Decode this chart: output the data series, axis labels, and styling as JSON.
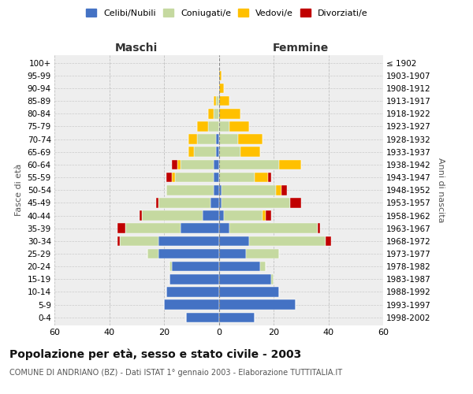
{
  "age_groups": [
    "0-4",
    "5-9",
    "10-14",
    "15-19",
    "20-24",
    "25-29",
    "30-34",
    "35-39",
    "40-44",
    "45-49",
    "50-54",
    "55-59",
    "60-64",
    "65-69",
    "70-74",
    "75-79",
    "80-84",
    "85-89",
    "90-94",
    "95-99",
    "100+"
  ],
  "birth_years": [
    "1998-2002",
    "1993-1997",
    "1988-1992",
    "1983-1987",
    "1978-1982",
    "1973-1977",
    "1968-1972",
    "1963-1967",
    "1958-1962",
    "1953-1957",
    "1948-1952",
    "1943-1947",
    "1938-1942",
    "1933-1937",
    "1928-1932",
    "1923-1927",
    "1918-1922",
    "1913-1917",
    "1908-1912",
    "1903-1907",
    "≤ 1902"
  ],
  "colors": {
    "celibe": "#4472c4",
    "coniugato": "#c5d9a0",
    "vedovo": "#ffc000",
    "divorziato": "#c00000"
  },
  "maschi": {
    "celibe": [
      12,
      20,
      19,
      18,
      17,
      22,
      22,
      14,
      6,
      3,
      2,
      2,
      2,
      1,
      1,
      0,
      0,
      0,
      0,
      0,
      0
    ],
    "coniugato": [
      0,
      0,
      0,
      0,
      1,
      4,
      14,
      20,
      22,
      19,
      17,
      14,
      12,
      8,
      7,
      4,
      2,
      1,
      0,
      0,
      0
    ],
    "vedovo": [
      0,
      0,
      0,
      0,
      0,
      0,
      0,
      0,
      0,
      0,
      0,
      1,
      1,
      2,
      3,
      4,
      2,
      1,
      0,
      0,
      0
    ],
    "divorziato": [
      0,
      0,
      0,
      0,
      0,
      0,
      1,
      3,
      1,
      1,
      0,
      2,
      2,
      0,
      0,
      0,
      0,
      0,
      0,
      0,
      0
    ]
  },
  "femmine": {
    "nubile": [
      13,
      28,
      22,
      19,
      15,
      10,
      11,
      4,
      2,
      1,
      1,
      0,
      0,
      0,
      0,
      0,
      0,
      0,
      0,
      0,
      0
    ],
    "coniugata": [
      0,
      0,
      0,
      1,
      2,
      12,
      28,
      32,
      14,
      25,
      20,
      13,
      22,
      8,
      7,
      4,
      0,
      0,
      0,
      0,
      0
    ],
    "vedova": [
      0,
      0,
      0,
      0,
      0,
      0,
      0,
      0,
      1,
      0,
      2,
      5,
      8,
      7,
      9,
      7,
      8,
      4,
      2,
      1,
      0
    ],
    "divorziata": [
      0,
      0,
      0,
      0,
      0,
      0,
      2,
      1,
      2,
      4,
      2,
      1,
      0,
      0,
      0,
      0,
      0,
      0,
      0,
      0,
      0
    ]
  },
  "xlim": 60,
  "title": "Popolazione per età, sesso e stato civile - 2003",
  "subtitle": "COMUNE DI ANDRIANO (BZ) - Dati ISTAT 1° gennaio 2003 - Elaborazione TUTTITALIA.IT",
  "ylabel_left": "Fasce di età",
  "ylabel_right": "Anni di nascita",
  "xlabel_left": "Maschi",
  "xlabel_right": "Femmine",
  "legend_labels": [
    "Celibi/Nubili",
    "Coniugati/e",
    "Vedovi/e",
    "Divorziati/e"
  ],
  "background_color": "#eeeeee",
  "grid_color": "#bbbbbb"
}
